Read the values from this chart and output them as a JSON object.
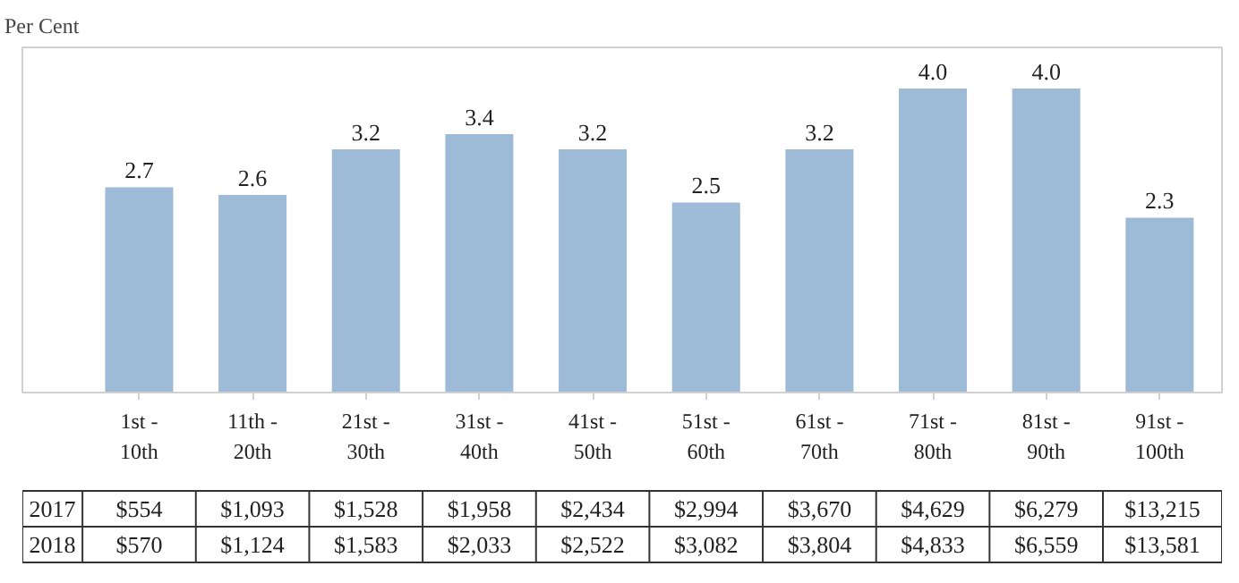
{
  "chart_data": {
    "type": "bar",
    "ylabel": "Per Cent",
    "categories": [
      "1st -\n10th",
      "11th -\n20th",
      "21st -\n30th",
      "31st -\n40th",
      "41st -\n50th",
      "51st -\n60th",
      "61st -\n70th",
      "71st -\n80th",
      "81st -\n90th",
      "91st -\n100th"
    ],
    "values": [
      2.7,
      2.6,
      3.2,
      3.4,
      3.2,
      2.5,
      3.2,
      4.0,
      4.0,
      2.3
    ],
    "value_labels": [
      "2.7",
      "2.6",
      "3.2",
      "3.4",
      "3.2",
      "2.5",
      "3.2",
      "4.0",
      "4.0",
      "2.3"
    ],
    "color": "#9dbad6",
    "grid": false,
    "annotations": [
      "2017",
      "$554",
      "$1,093",
      "$1,528",
      "$1,958",
      "$2,434",
      "$2,994",
      "$3,670",
      "$4,629",
      "$6,279",
      "$13,215",
      "2018",
      "$570",
      "$1,124",
      "$1,583",
      "$2,033",
      "$2,522",
      "$3,082",
      "$3,804",
      "$4,833",
      "$6,559",
      "$13,581"
    ]
  }
}
